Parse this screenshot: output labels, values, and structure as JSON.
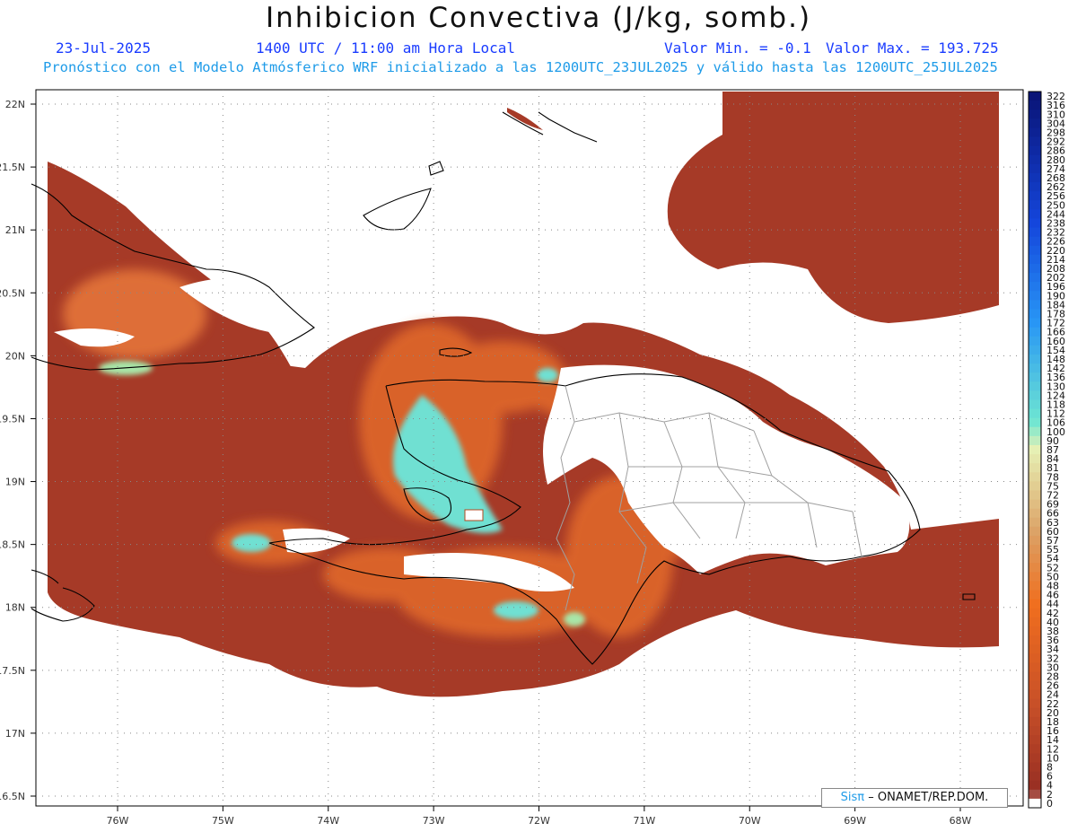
{
  "title": "Inhibicion Convectiva (J/kg, somb.)",
  "header": {
    "date": "23-Jul-2025",
    "time": "1400 UTC / 11:00 am Hora Local",
    "valor_min": "Valor Min. = -0.1",
    "valor_max": "Valor Max. = 193.725",
    "subtitle": "Pronóstico con el Modelo Atmósferico WRF inicializado a las 1200UTC_23JUL2025 y válido hasta las  1200UTC_25JUL2025"
  },
  "map": {
    "lat_labels": [
      "22N",
      "21.5N",
      "21N",
      "20.5N",
      "20N",
      "19.5N",
      "19N",
      "18.5N",
      "18N",
      "17.5N",
      "17N",
      "16.5N"
    ],
    "lon_labels": [
      "76W",
      "75W",
      "74W",
      "73W",
      "72W",
      "71W",
      "70W",
      "69W",
      "68W"
    ],
    "colorbar_labels": [
      "322",
      "316",
      "310",
      "304",
      "298",
      "292",
      "286",
      "280",
      "274",
      "268",
      "262",
      "256",
      "250",
      "244",
      "238",
      "232",
      "226",
      "220",
      "214",
      "208",
      "202",
      "196",
      "190",
      "184",
      "178",
      "172",
      "166",
      "160",
      "154",
      "148",
      "142",
      "136",
      "130",
      "124",
      "118",
      "112",
      "106",
      "100",
      "90",
      "87",
      "84",
      "81",
      "78",
      "75",
      "72",
      "69",
      "66",
      "63",
      "60",
      "57",
      "55",
      "54",
      "52",
      "50",
      "48",
      "46",
      "44",
      "42",
      "40",
      "38",
      "36",
      "34",
      "32",
      "30",
      "28",
      "26",
      "24",
      "22",
      "20",
      "18",
      "16",
      "14",
      "12",
      "10",
      "8",
      "6",
      "4",
      "2",
      "0"
    ],
    "colors": {
      "background": "#a63a27",
      "high": "#6fe0d2",
      "mid": "#e36a2a",
      "coast": "#000000",
      "border": "#aaaaaa"
    }
  },
  "credit": {
    "logo": "Sisπ",
    "text": "– ONAMET/REP.DOM."
  }
}
